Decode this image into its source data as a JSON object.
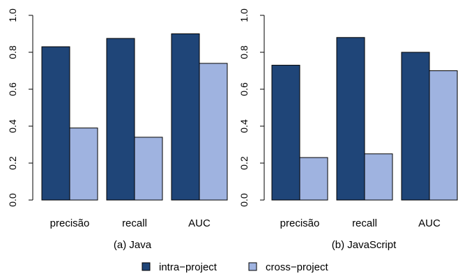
{
  "colors": {
    "intra": "#1f4578",
    "cross": "#9fb3e0",
    "axis": "#000000",
    "background": "#ffffff"
  },
  "legend": {
    "entries": [
      "intra−project",
      "cross−project"
    ]
  },
  "chart_data": [
    {
      "type": "bar",
      "title": "(a) Java",
      "categories": [
        "precisão",
        "recall",
        "AUC"
      ],
      "series": [
        {
          "name": "intra−project",
          "values": [
            0.83,
            0.875,
            0.9
          ]
        },
        {
          "name": "cross−project",
          "values": [
            0.39,
            0.34,
            0.74
          ]
        }
      ],
      "ylim": [
        0,
        1.0
      ],
      "yticks": [
        "0.0",
        "0.2",
        "0.4",
        "0.6",
        "0.8",
        "1.0"
      ],
      "grid": false,
      "legend_position": "bottom"
    },
    {
      "type": "bar",
      "title": "(b) JavaScript",
      "categories": [
        "precisão",
        "recall",
        "AUC"
      ],
      "series": [
        {
          "name": "intra−project",
          "values": [
            0.73,
            0.88,
            0.8
          ]
        },
        {
          "name": "cross−project",
          "values": [
            0.23,
            0.25,
            0.7
          ]
        }
      ],
      "ylim": [
        0,
        1.0
      ],
      "yticks": [
        "0.0",
        "0.2",
        "0.4",
        "0.6",
        "0.8",
        "1.0"
      ],
      "grid": false,
      "legend_position": "bottom"
    }
  ]
}
